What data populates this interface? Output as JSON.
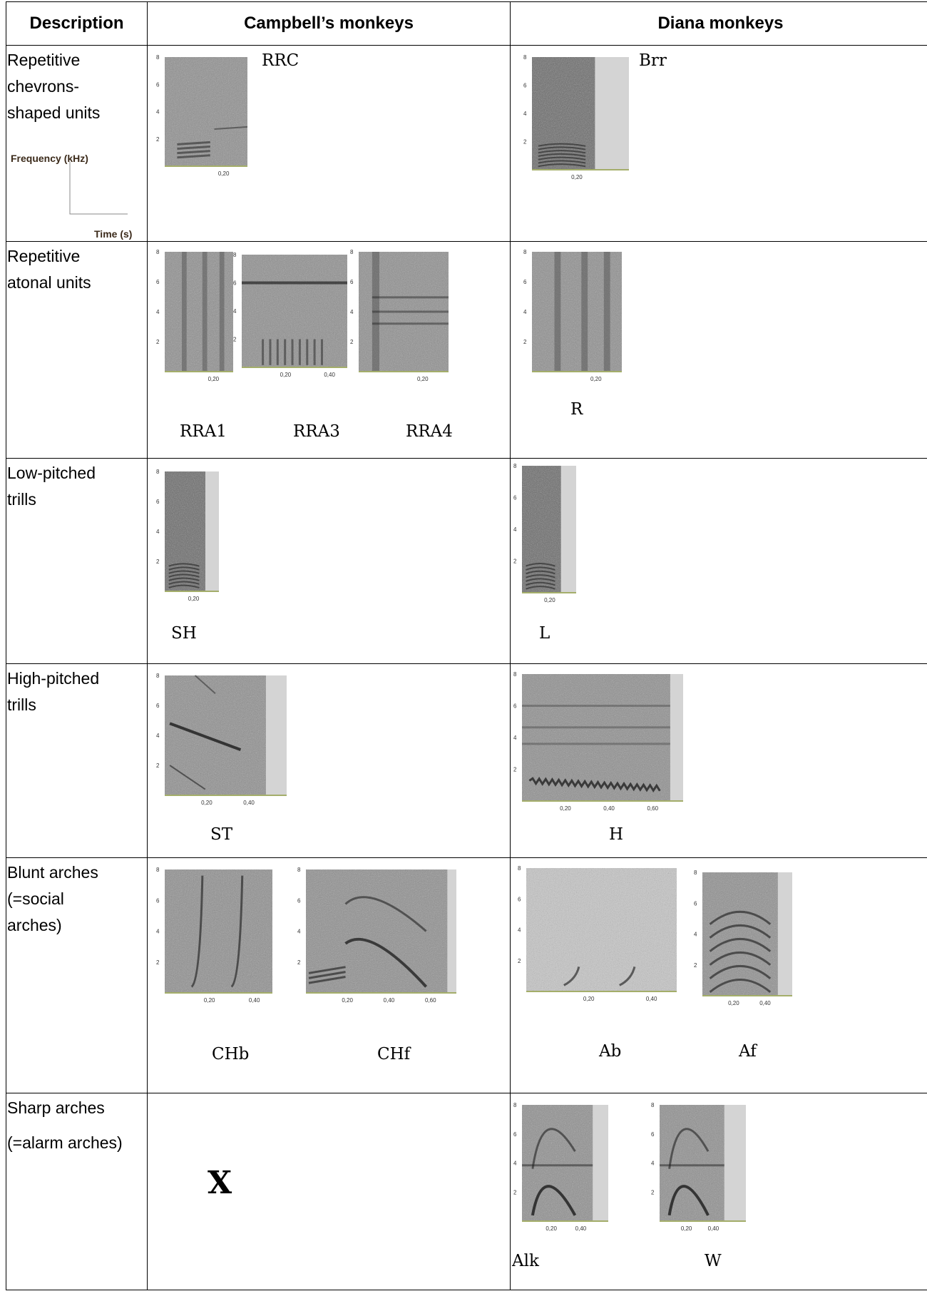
{
  "table": {
    "headers": [
      "Description",
      "Campbell’s monkeys",
      "Diana monkeys"
    ],
    "rows": [
      {
        "desc": [
          "Repetitive",
          "chevrons-",
          "shaped units"
        ],
        "axis": {
          "y": "Frequency (kHz)",
          "x": "Time (s)"
        },
        "campbell": [
          {
            "label": "RRC",
            "ticks": [
              "0,20"
            ]
          }
        ],
        "diana": [
          {
            "label": "Brr",
            "ticks": [
              "0,20"
            ]
          }
        ]
      },
      {
        "desc": [
          "Repetitive",
          "atonal units"
        ],
        "campbell": [
          {
            "label": "RRA1",
            "ticks": [
              "0,20"
            ]
          },
          {
            "label": "RRA3",
            "ticks": [
              "0,20",
              "0,40"
            ]
          },
          {
            "label": "RRA4",
            "ticks": [
              "0,20"
            ]
          }
        ],
        "diana": [
          {
            "label": "R",
            "ticks": [
              "0,20"
            ]
          }
        ]
      },
      {
        "desc": [
          "Low-pitched",
          "trills"
        ],
        "campbell": [
          {
            "label": "SH",
            "ticks": [
              "0,20"
            ]
          }
        ],
        "diana": [
          {
            "label": "L",
            "ticks": [
              "0,20"
            ]
          }
        ]
      },
      {
        "desc": [
          "High-pitched",
          "trills"
        ],
        "campbell": [
          {
            "label": "ST",
            "ticks": [
              "0,20",
              "0,40"
            ]
          }
        ],
        "diana": [
          {
            "label": "H",
            "ticks": [
              "0,20",
              "0,40",
              "0,60"
            ]
          }
        ]
      },
      {
        "desc": [
          "Blunt arches",
          " (=social",
          "arches)"
        ],
        "campbell": [
          {
            "label": "CHb",
            "ticks": [
              "0,20",
              "0,40"
            ]
          },
          {
            "label": "CHf",
            "ticks": [
              "0,20",
              "0,40",
              "0,60"
            ]
          }
        ],
        "diana": [
          {
            "label": "Ab",
            "ticks": [
              "0,20",
              "0,40"
            ]
          },
          {
            "label": "Af",
            "ticks": [
              "0,20",
              "0,40"
            ]
          }
        ]
      },
      {
        "desc": [
          "Sharp arches",
          "(=alarm arches)"
        ],
        "campbell_absent": "X",
        "diana": [
          {
            "label": "Alk",
            "ticks": [
              "0,20",
              "0,40"
            ]
          },
          {
            "label": "W",
            "ticks": [
              "0,20",
              "0,40"
            ]
          }
        ]
      }
    ],
    "freq_ticks": [
      "2",
      "4",
      "6",
      "8"
    ]
  }
}
